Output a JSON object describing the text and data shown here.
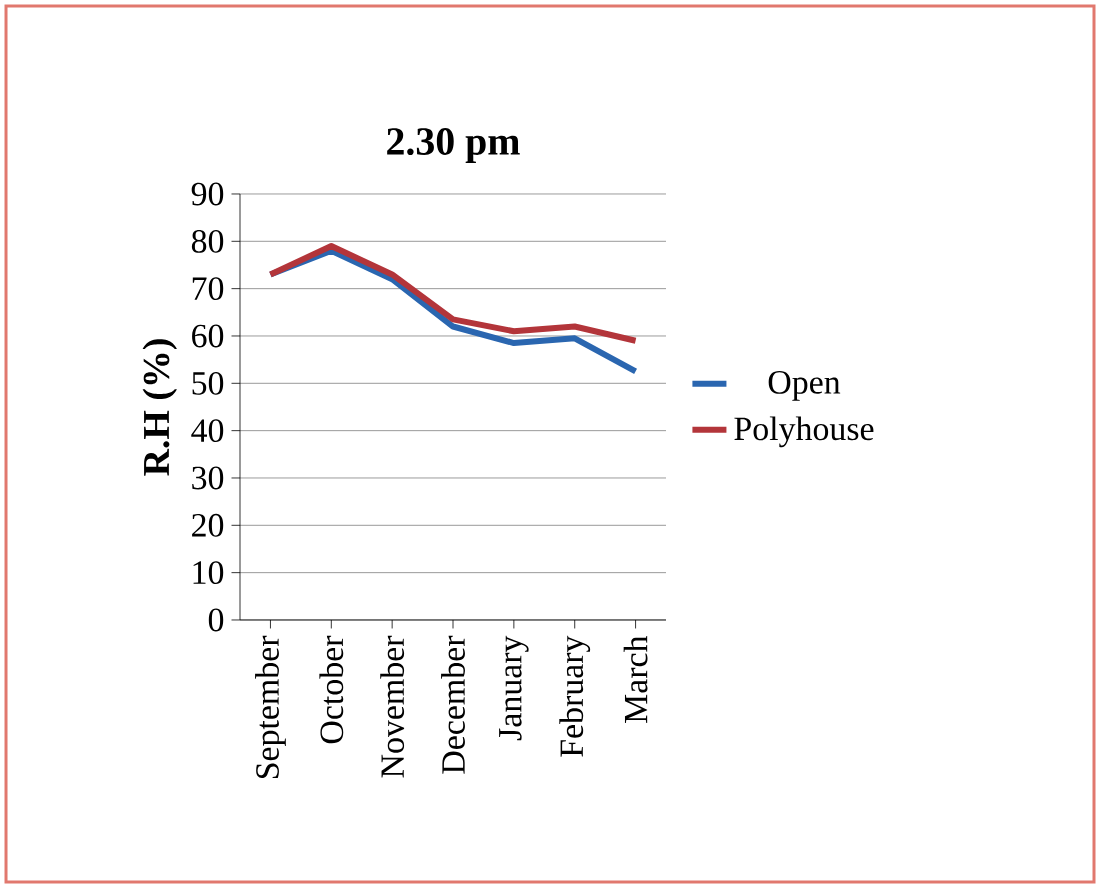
{
  "chart_data": {
    "type": "line",
    "title": "2.30 pm",
    "ylabel": "R.H (%)",
    "categories": [
      "September",
      "October",
      "November",
      "December",
      "January",
      "February",
      "March"
    ],
    "series": [
      {
        "name": "Open",
        "color": "#2a66b0",
        "values": [
          73,
          78,
          72,
          62,
          58.5,
          59.5,
          52.5
        ]
      },
      {
        "name": "Polyhouse",
        "color": "#b3353a",
        "values": [
          73,
          79,
          73,
          63.5,
          61,
          62,
          59
        ]
      }
    ],
    "ylim": [
      0,
      90
    ],
    "yticks": [
      0,
      10,
      20,
      30,
      40,
      50,
      60,
      70,
      80,
      90
    ],
    "grid": "y",
    "legend": "right",
    "marker": "none",
    "line_style": "solid"
  }
}
